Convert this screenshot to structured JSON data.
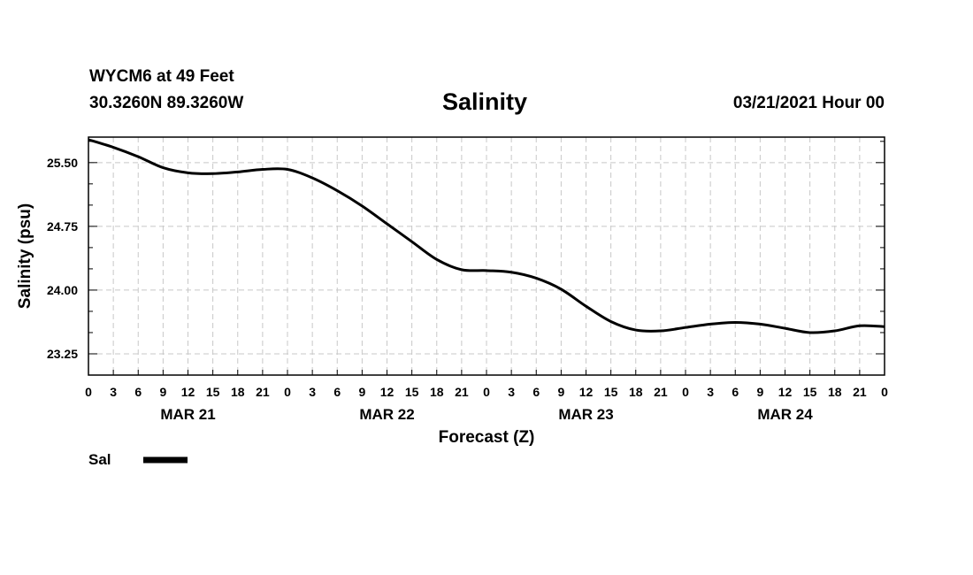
{
  "header": {
    "station": "WYCM6 at 49 Feet",
    "coords": "30.3260N 89.3260W",
    "forecast_time": "03/21/2021 Hour 00"
  },
  "chart_data": {
    "type": "line",
    "title": "Salinity",
    "xlabel": "Forecast (Z)",
    "ylabel": "Salinity (psu)",
    "ylim": [
      23.0,
      25.8
    ],
    "xlim": [
      0,
      96
    ],
    "grid": true,
    "y_ticks": [
      23.25,
      24.0,
      24.75,
      25.5
    ],
    "y_tick_labels": [
      "23.25",
      "24.00",
      "24.75",
      "25.50"
    ],
    "x_ticks": [
      0,
      3,
      6,
      9,
      12,
      15,
      18,
      21,
      24,
      27,
      30,
      33,
      36,
      39,
      42,
      45,
      48,
      51,
      54,
      57,
      60,
      63,
      66,
      69,
      72,
      75,
      78,
      81,
      84,
      87,
      90,
      93,
      96
    ],
    "x_tick_labels": [
      "0",
      "3",
      "6",
      "9",
      "12",
      "15",
      "18",
      "21",
      "0",
      "3",
      "6",
      "9",
      "12",
      "15",
      "18",
      "21",
      "0",
      "3",
      "6",
      "9",
      "12",
      "15",
      "18",
      "21",
      "0",
      "3",
      "6",
      "9",
      "12",
      "15",
      "18",
      "21",
      "0"
    ],
    "date_labels": [
      {
        "text": "MAR 21",
        "x": 12
      },
      {
        "text": "MAR 22",
        "x": 36
      },
      {
        "text": "MAR 23",
        "x": 60
      },
      {
        "text": "MAR 24",
        "x": 84
      }
    ],
    "series": [
      {
        "name": "Sal",
        "x": [
          0,
          3,
          6,
          9,
          12,
          15,
          18,
          21,
          24,
          27,
          30,
          33,
          36,
          39,
          42,
          45,
          48,
          51,
          54,
          57,
          60,
          63,
          66,
          69,
          72,
          75,
          78,
          81,
          84,
          87,
          90,
          93,
          96
        ],
        "values": [
          25.77,
          25.68,
          25.57,
          25.44,
          25.38,
          25.37,
          25.39,
          25.42,
          25.42,
          25.32,
          25.17,
          24.99,
          24.78,
          24.57,
          24.36,
          24.24,
          24.23,
          24.21,
          24.14,
          24.01,
          23.81,
          23.63,
          23.53,
          23.52,
          23.56,
          23.6,
          23.62,
          23.6,
          23.55,
          23.5,
          23.52,
          23.58,
          23.57
        ]
      }
    ],
    "legend": [
      {
        "label": "Sal",
        "color": "#000000"
      }
    ],
    "legend_position": "bottom-left"
  }
}
